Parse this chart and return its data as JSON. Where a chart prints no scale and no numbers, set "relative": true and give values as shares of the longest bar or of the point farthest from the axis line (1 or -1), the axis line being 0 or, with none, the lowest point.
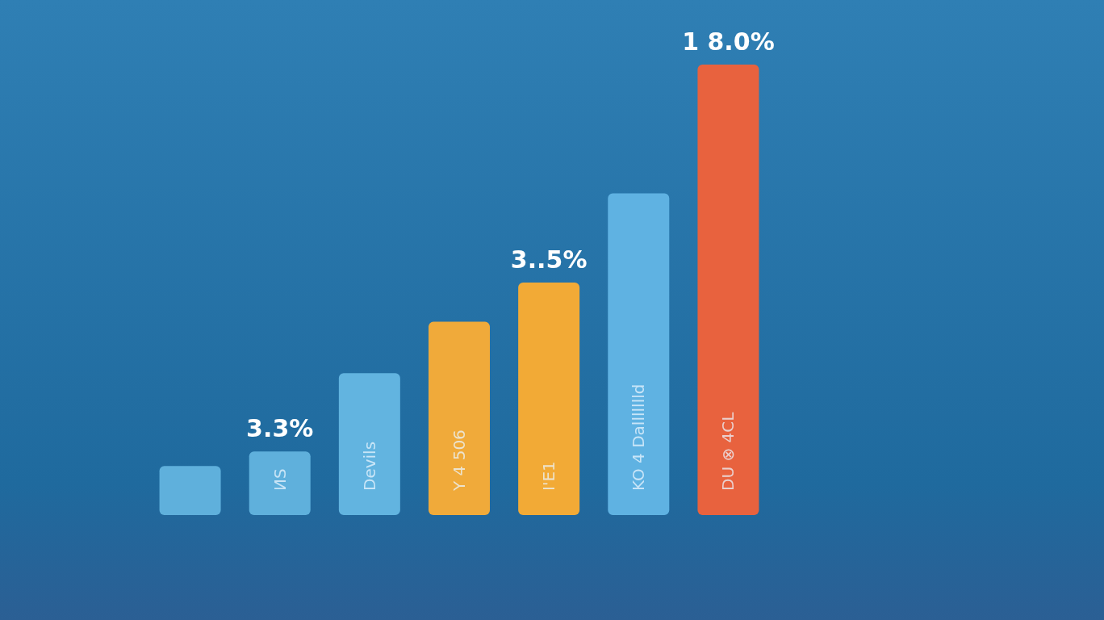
{
  "chart_data": {
    "type": "bar",
    "relative": true,
    "categories": [
      null,
      "ИS",
      "Devils",
      "Y 4 506",
      "I'E1",
      "KO 4 Dallllllld",
      "DU ⊗ 4CL"
    ],
    "values": [
      0.109,
      0.141,
      0.315,
      0.429,
      0.516,
      0.714,
      1
    ],
    "colors": [
      "#5fb0dc",
      "#5fb0dc",
      "#62b4e0",
      "#f0aa3a",
      "#f2aa36",
      "#5fb2e2",
      "#e8623e"
    ],
    "annotations": [
      {
        "text": "3.3%",
        "x": "ИS",
        "y": 0.141
      },
      {
        "text": "3..5%",
        "x": "I'E1",
        "y": 0.516
      },
      {
        "text": "1 8.0%",
        "x": "DU ⊗ 4CL",
        "y": 1
      }
    ],
    "grid": false
  }
}
